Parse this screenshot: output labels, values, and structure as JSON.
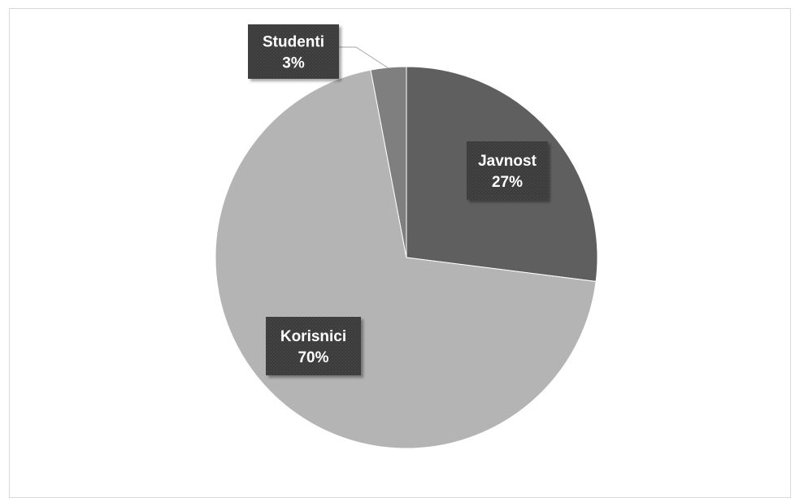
{
  "chart_data": {
    "type": "pie",
    "title": "",
    "slices": [
      {
        "label": "Javnost",
        "value": 27,
        "display": "27%",
        "color": "#5f5f5f"
      },
      {
        "label": "Korisnici",
        "value": 70,
        "display": "70%",
        "color": "#b4b4b4"
      },
      {
        "label": "Studenti",
        "value": 3,
        "display": "3%",
        "color": "#7f7f7f"
      }
    ],
    "legend": "none",
    "label_background": "#3a3a3a",
    "label_text_color": "#ffffff"
  }
}
